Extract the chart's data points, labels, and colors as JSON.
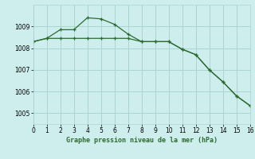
{
  "xlabel": "Graphe pression niveau de la mer (hPa)",
  "background_color": "#ceeeed",
  "grid_color": "#a8d5d3",
  "line_color": "#2d6a30",
  "x_min": 0,
  "x_max": 16,
  "y_min": 1004.5,
  "y_max": 1010.0,
  "yticks": [
    1005,
    1006,
    1007,
    1008,
    1009
  ],
  "xticks": [
    0,
    1,
    2,
    3,
    4,
    5,
    6,
    7,
    8,
    9,
    10,
    11,
    12,
    13,
    14,
    15,
    16
  ],
  "series1_x": [
    0,
    1,
    2,
    3,
    4,
    5,
    6,
    7,
    8,
    9,
    10,
    11,
    12,
    13,
    14,
    15,
    16
  ],
  "series1_y": [
    1008.3,
    1008.45,
    1008.45,
    1008.45,
    1008.45,
    1008.45,
    1008.45,
    1008.45,
    1008.3,
    1008.3,
    1008.3,
    1007.95,
    1007.7,
    1007.0,
    1006.45,
    1005.8,
    1005.35
  ],
  "series2_x": [
    0,
    1,
    2,
    3,
    4,
    5,
    6,
    7,
    8,
    9,
    10,
    11,
    12,
    13,
    14,
    15,
    16
  ],
  "series2_y": [
    1008.3,
    1008.45,
    1008.85,
    1008.85,
    1009.4,
    1009.35,
    1009.1,
    1008.65,
    1008.3,
    1008.3,
    1008.3,
    1007.95,
    1007.7,
    1007.0,
    1006.45,
    1005.8,
    1005.35
  ]
}
